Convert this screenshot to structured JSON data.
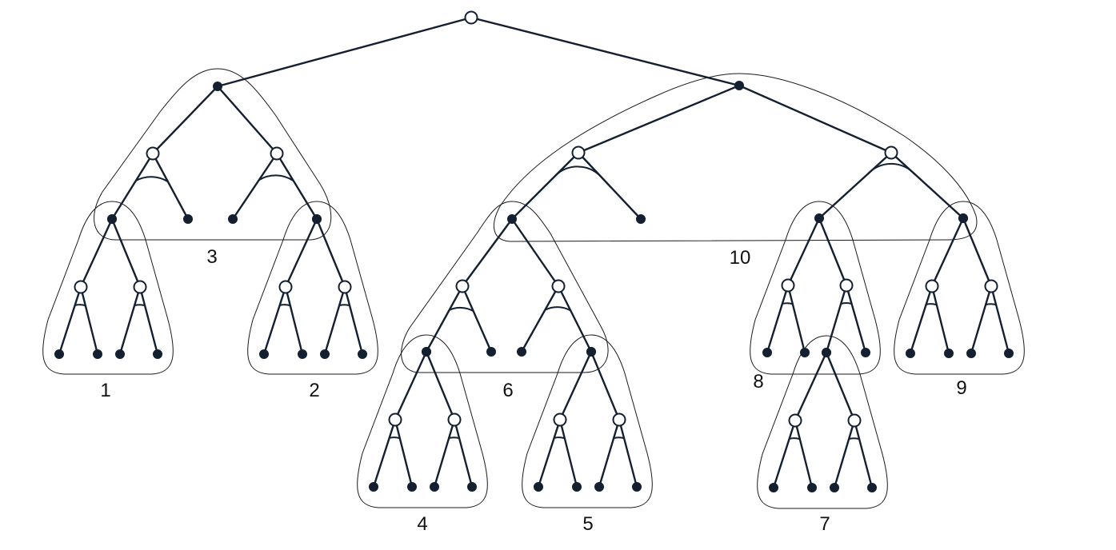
{
  "labels": {
    "g1": "1",
    "g2": "2",
    "g3": "3",
    "g4": "4",
    "g5": "5",
    "g6": "6",
    "g7": "7",
    "g8": "8",
    "g9": "9",
    "g10": "10"
  }
}
